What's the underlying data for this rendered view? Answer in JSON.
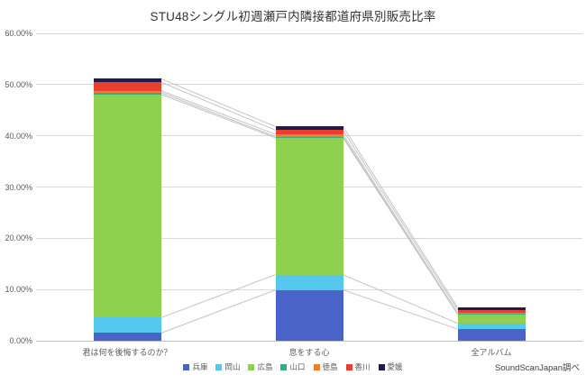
{
  "title": "STU48シングル初週瀬戸内隣接都道府県別販売比率",
  "source_note": "SoundScanJapan調べ",
  "chart_data": {
    "type": "bar",
    "subtype": "stacked-column-with-series-lines",
    "title": "STU48シングル初週瀬戸内隣接都道府県別販売比率",
    "xlabel": "",
    "ylabel": "",
    "categories": [
      "君は何を後悔するのか？",
      "息をする心",
      "全アルバム"
    ],
    "series": [
      {
        "name": "兵庫",
        "color": "#4a63c8",
        "values": [
          1.5,
          9.9,
          2.3
        ]
      },
      {
        "name": "岡山",
        "color": "#55c8ee",
        "values": [
          3.0,
          3.0,
          1.1
        ]
      },
      {
        "name": "広島",
        "color": "#8fd14e",
        "values": [
          43.6,
          26.7,
          1.8
        ]
      },
      {
        "name": "山口",
        "color": "#2eb37c",
        "values": [
          0.35,
          0.25,
          0.1
        ]
      },
      {
        "name": "徳島",
        "color": "#ed7d31",
        "values": [
          0.35,
          0.45,
          0.1
        ]
      },
      {
        "name": "香川",
        "color": "#e8402e",
        "values": [
          1.7,
          0.8,
          0.6
        ]
      },
      {
        "name": "愛媛",
        "color": "#211c49",
        "values": [
          0.65,
          0.7,
          0.5
        ]
      }
    ],
    "stack_totals_pct": [
      51.15,
      41.8,
      6.5
    ],
    "y_axis": {
      "min": 0,
      "max": 60,
      "step": 10,
      "tick_labels": [
        "0.00%",
        "10.00%",
        "20.00%",
        "30.00%",
        "40.00%",
        "50.00%",
        "60.00%"
      ]
    },
    "grid": true,
    "legend_position": "bottom",
    "colors": {
      "gridline": "#d9d9d9",
      "axis_line": "#bdbdbd",
      "series_line": "#c4c4c4",
      "tick_text": "#595959",
      "title_text": "#333333"
    }
  }
}
